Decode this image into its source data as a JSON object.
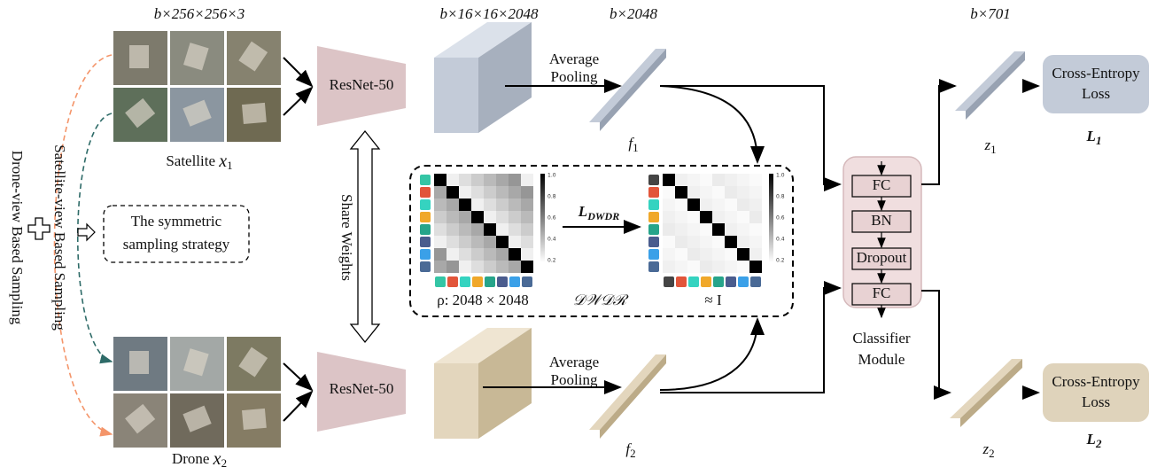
{
  "input_shape": "b×256×256×3",
  "satellite_label": {
    "text": "Satellite ",
    "var": "x",
    "sub": "1"
  },
  "drone_label": {
    "text": "Drone ",
    "var": "x",
    "sub": "2"
  },
  "backbone": [
    "ResNet-50",
    "ResNet-50"
  ],
  "share_weights": "Share Weights",
  "feature_shape": "b×16×16×2048",
  "pooled_shape": "b×2048",
  "pooling": [
    [
      "Average",
      "Pooling"
    ],
    [
      "Average",
      "Pooling"
    ]
  ],
  "features": [
    {
      "var": "f",
      "sub": "1"
    },
    {
      "var": "f",
      "sub": "2"
    }
  ],
  "sampling": {
    "strategy": [
      "The symmetric",
      "sampling strategy"
    ],
    "satellite": "Satellite-view Based Sampling",
    "drone": "Drone-view Based Sampling"
  },
  "dwdr": {
    "loss": {
      "var": "L",
      "sub": "DWDR"
    },
    "rho": "ρ: 2048 × 2048",
    "name": "𝒟𝒲𝒟ℛ",
    "approx": "≈ I",
    "colorbar_ticks": [
      "1.0",
      "0.8",
      "0.6",
      "0.4",
      "0.2"
    ]
  },
  "classifier": {
    "layers": [
      "FC",
      "BN",
      "Dropout",
      "FC"
    ],
    "label": [
      "Classifier",
      "Module"
    ]
  },
  "output_shape": "b×701",
  "outputs": [
    {
      "var": "z",
      "sub": "1"
    },
    {
      "var": "z",
      "sub": "2"
    }
  ],
  "losses": [
    {
      "box": [
        "Cross-Entropy",
        "Loss"
      ],
      "var": "L",
      "sub": "1"
    },
    {
      "box": [
        "Cross-Entropy",
        "Loss"
      ],
      "var": "L",
      "sub": "2"
    }
  ]
}
